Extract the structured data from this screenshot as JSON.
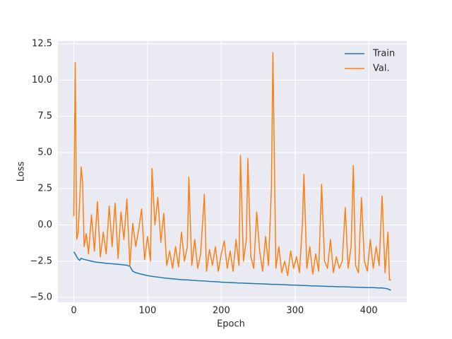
{
  "chart_data": {
    "type": "line",
    "xlabel": "Epoch",
    "ylabel": "Loss",
    "x": [
      0,
      2,
      4,
      6,
      8,
      10,
      12,
      14,
      17,
      20,
      24,
      28,
      32,
      36,
      40,
      44,
      48,
      52,
      56,
      60,
      64,
      68,
      72,
      76,
      80,
      84,
      88,
      92,
      96,
      100,
      104,
      106,
      110,
      114,
      118,
      122,
      126,
      130,
      134,
      138,
      142,
      146,
      150,
      154,
      156,
      160,
      164,
      168,
      172,
      177,
      180,
      184,
      188,
      192,
      196,
      200,
      204,
      208,
      212,
      216,
      220,
      224,
      226,
      230,
      234,
      236,
      240,
      244,
      248,
      252,
      256,
      260,
      264,
      268,
      270,
      274,
      278,
      282,
      286,
      290,
      294,
      298,
      302,
      306,
      310,
      312,
      316,
      320,
      324,
      328,
      332,
      336,
      340,
      344,
      348,
      352,
      356,
      360,
      364,
      368,
      372,
      376,
      379,
      382,
      386,
      390,
      394,
      398,
      402,
      406,
      410,
      414,
      418,
      422,
      426,
      428,
      430
    ],
    "series": [
      {
        "name": "Train",
        "color": "#1f77b4",
        "values": [
          -1.85,
          -2.0,
          -2.2,
          -2.35,
          -2.45,
          -2.3,
          -2.35,
          -2.38,
          -2.42,
          -2.45,
          -2.5,
          -2.55,
          -2.58,
          -2.6,
          -2.62,
          -2.65,
          -2.67,
          -2.68,
          -2.7,
          -2.72,
          -2.74,
          -2.76,
          -2.78,
          -2.85,
          -3.2,
          -3.3,
          -3.35,
          -3.4,
          -3.45,
          -3.5,
          -3.53,
          -3.55,
          -3.58,
          -3.6,
          -3.63,
          -3.66,
          -3.68,
          -3.7,
          -3.72,
          -3.74,
          -3.76,
          -3.78,
          -3.79,
          -3.8,
          -3.8,
          -3.82,
          -3.83,
          -3.85,
          -3.86,
          -3.87,
          -3.88,
          -3.9,
          -3.91,
          -3.92,
          -3.93,
          -3.95,
          -3.96,
          -3.97,
          -3.98,
          -3.99,
          -4.0,
          -4.01,
          -4.01,
          -4.02,
          -4.03,
          -4.03,
          -4.04,
          -4.05,
          -4.06,
          -4.06,
          -4.07,
          -4.08,
          -4.09,
          -4.1,
          -4.1,
          -4.1,
          -4.11,
          -4.12,
          -4.13,
          -4.14,
          -4.15,
          -4.15,
          -4.16,
          -4.17,
          -4.18,
          -4.18,
          -4.19,
          -4.2,
          -4.21,
          -4.21,
          -4.22,
          -4.23,
          -4.23,
          -4.24,
          -4.25,
          -4.25,
          -4.26,
          -4.27,
          -4.27,
          -4.28,
          -4.28,
          -4.29,
          -4.3,
          -4.3,
          -4.31,
          -4.31,
          -4.32,
          -4.32,
          -4.33,
          -4.33,
          -4.34,
          -4.35,
          -4.35,
          -4.38,
          -4.42,
          -4.48,
          -4.5
        ]
      },
      {
        "name": "Val.",
        "color": "#ff7f0e",
        "values": [
          0.6,
          11.2,
          -1.0,
          -0.5,
          1.7,
          4.0,
          2.9,
          -1.5,
          -0.6,
          -2.0,
          0.7,
          -1.8,
          1.6,
          -2.2,
          -0.5,
          -2.0,
          1.3,
          -1.5,
          1.5,
          -2.3,
          0.9,
          -1.0,
          1.8,
          -2.8,
          0.1,
          -1.5,
          -0.3,
          1.1,
          -2.4,
          -0.8,
          -2.5,
          3.9,
          0.0,
          1.9,
          -1.2,
          0.8,
          -2.8,
          -1.8,
          -3.0,
          -1.5,
          -2.9,
          -0.5,
          -2.5,
          -1.5,
          3.3,
          -2.8,
          -1.0,
          -3.0,
          -2.0,
          2.1,
          -3.2,
          -1.7,
          -2.8,
          -1.5,
          -3.2,
          -2.0,
          -1.1,
          -3.0,
          -1.8,
          -3.2,
          -1.0,
          -2.8,
          4.8,
          -2.5,
          -1.0,
          4.6,
          -2.2,
          -3.0,
          0.9,
          -1.8,
          -3.2,
          -0.8,
          -2.8,
          2.6,
          11.9,
          -3.0,
          -1.5,
          -3.3,
          -2.5,
          -3.5,
          -1.8,
          -3.0,
          -2.2,
          -3.3,
          0.1,
          3.5,
          -3.0,
          -1.5,
          -3.4,
          -2.0,
          -3.2,
          2.8,
          -2.5,
          -3.0,
          -1.0,
          -3.3,
          -2.2,
          -3.0,
          -2.5,
          1.2,
          -3.0,
          -1.5,
          4.1,
          -2.8,
          -3.3,
          1.9,
          -2.5,
          -3.2,
          -1.0,
          -3.0,
          -1.5,
          -2.8,
          2.0,
          -3.3,
          -0.5,
          -3.8,
          -3.8
        ]
      }
    ],
    "xlim": [
      -21.5,
      451.5
    ],
    "ylim": [
      -5.34,
      12.7
    ],
    "xticks": [
      0,
      100,
      200,
      300,
      400
    ],
    "yticks": [
      {
        "value": -5,
        "label": "−5.0"
      },
      {
        "value": -2.5,
        "label": "−2.5"
      },
      {
        "value": 0,
        "label": "0.0"
      },
      2.5,
      {
        "value": 5,
        "label": "5.0"
      },
      7.5,
      {
        "value": 10,
        "label": "10.0"
      },
      12.5
    ],
    "grid": true,
    "legend": "upper right"
  }
}
